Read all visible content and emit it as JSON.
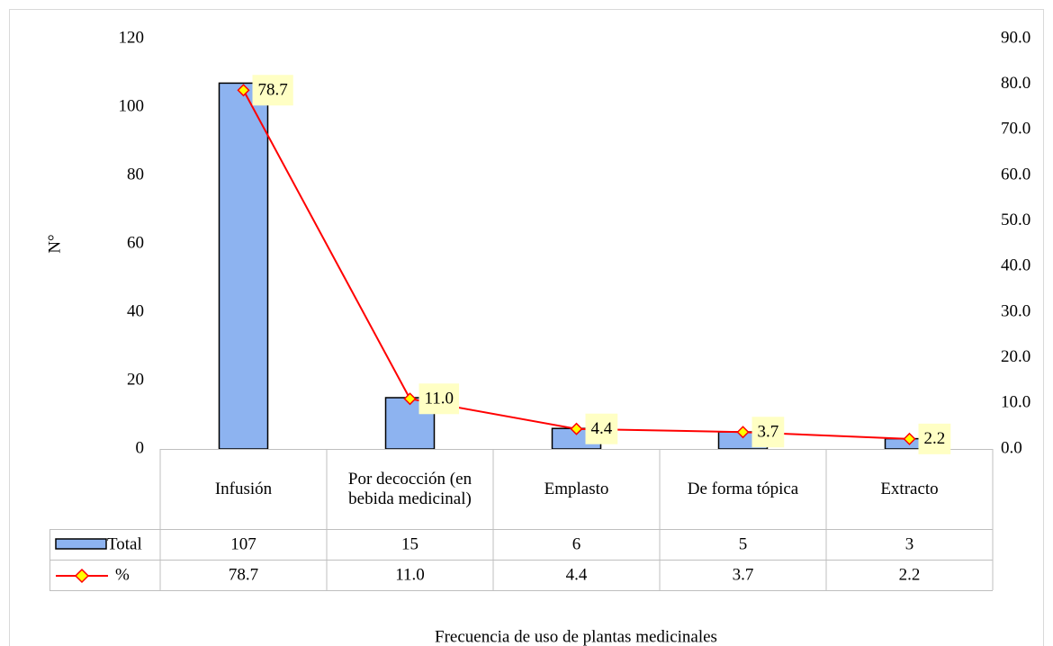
{
  "chart_data": {
    "type": "bar_line",
    "x_label": "Frecuencia de uso de plantas medicinales",
    "y_label": "N°",
    "categories": [
      "Infusión",
      "Por decocción (en bebida medicinal)",
      "Emplasto",
      "De forma tópica",
      "Extracto"
    ],
    "series": [
      {
        "name": "Total",
        "color": "#8db3f0",
        "values": [
          107,
          15,
          6,
          5,
          3
        ]
      },
      {
        "name": "%",
        "color": "#ff0000",
        "axis": "y2",
        "values": [
          78.7,
          11,
          4.4,
          3.7,
          2.2
        ],
        "value_labels": [
          "78.7",
          "11.0",
          "4.4",
          "3.7",
          "2.2"
        ]
      }
    ],
    "ylim": [
      0,
      120
    ],
    "yticks": [
      0,
      20,
      40,
      60,
      80,
      100,
      120
    ],
    "y2lim": [
      0,
      90
    ],
    "y2ticks": [
      {
        "value": 0,
        "label": "0.0"
      },
      {
        "value": 10,
        "label": "10.0"
      },
      {
        "value": 20,
        "label": "20.0"
      },
      {
        "value": 30,
        "label": "30.0"
      },
      {
        "value": 40,
        "label": "40.0"
      },
      {
        "value": 50,
        "label": "50.0"
      },
      {
        "value": 60,
        "label": "60.0"
      },
      {
        "value": 70,
        "label": "70.0"
      },
      {
        "value": 80,
        "label": "80.0"
      },
      {
        "value": 90,
        "label": "90.0"
      }
    ],
    "data_table": true
  }
}
